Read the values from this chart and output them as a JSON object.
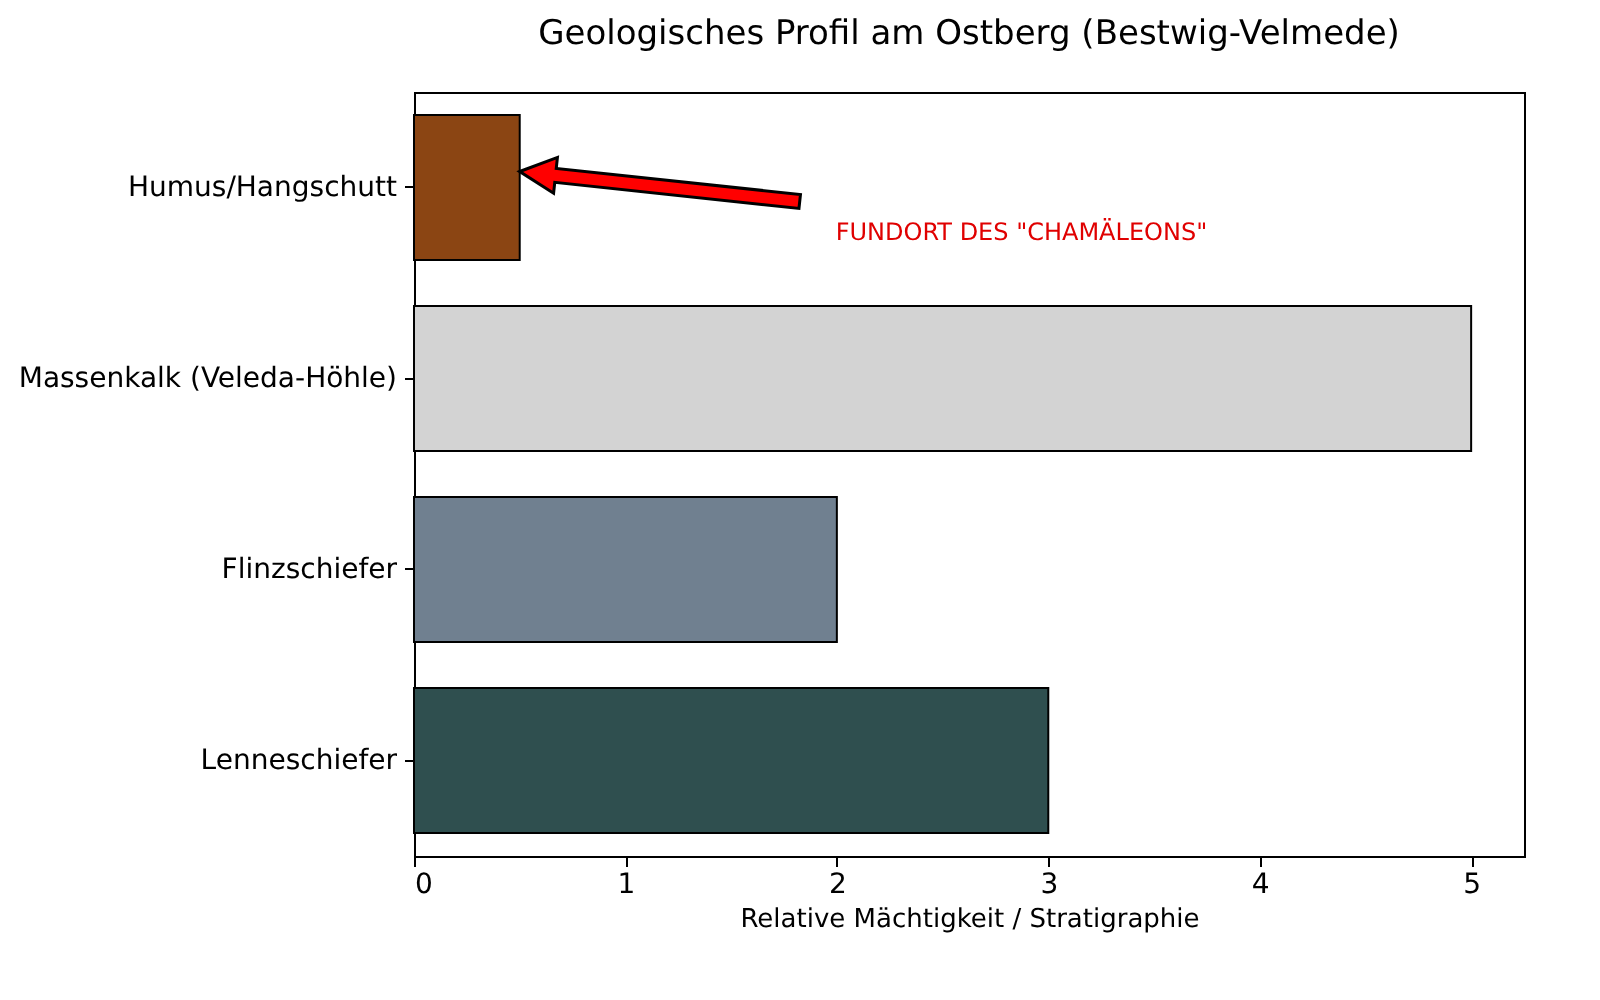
{
  "chart_data": {
    "type": "bar",
    "orientation": "horizontal",
    "title": "Geologisches Profil am Ostberg (Bestwig-Velmede)",
    "xlabel": "Relative Mächtigkeit / Stratigraphie",
    "categories": [
      "Humus/Hangschutt",
      "Massenkalk (Veleda-Höhle)",
      "Flinzschiefer",
      "Lenneschiefer"
    ],
    "values": [
      0.5,
      5,
      2,
      3
    ],
    "colors": [
      "#8b4513",
      "#d3d3d3",
      "#708090",
      "#2f4f4f"
    ],
    "xlim": [
      0,
      5.25
    ],
    "xticks": [
      0,
      1,
      2,
      3,
      4,
      5
    ],
    "grid": false,
    "annotations": [
      "FUNDORT DES \"CHAMÄLEONS\""
    ]
  }
}
